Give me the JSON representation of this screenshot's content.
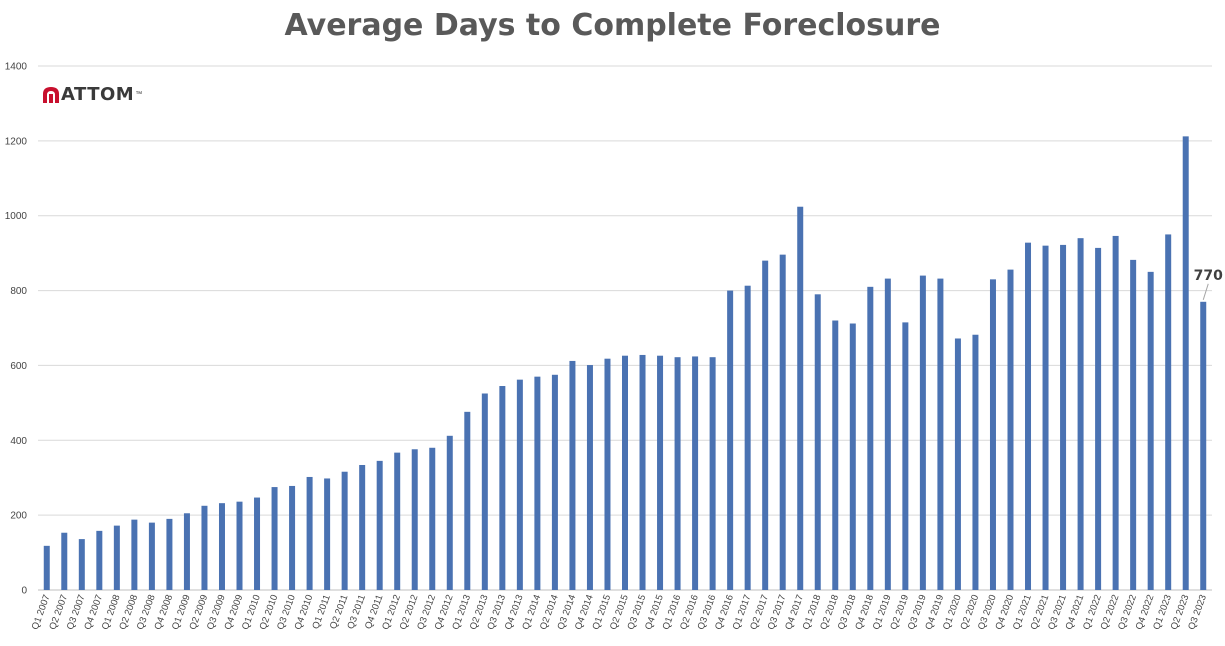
{
  "chart_data": {
    "type": "bar",
    "title": "Average Days to Complete Foreclosure",
    "xlabel": "",
    "ylabel": "",
    "ylim": [
      0,
      1400
    ],
    "yticks": [
      0,
      200,
      400,
      600,
      800,
      1000,
      1200,
      1400
    ],
    "grid": true,
    "bar_color": "#4a72b2",
    "categories": [
      "Q1 2007",
      "Q2 2007",
      "Q3 2007",
      "Q4 2007",
      "Q1 2008",
      "Q2 2008",
      "Q3 2008",
      "Q4 2008",
      "Q1 2009",
      "Q2 2009",
      "Q3 2009",
      "Q4 2009",
      "Q1 2010",
      "Q2 2010",
      "Q3 2010",
      "Q4 2010",
      "Q1 2011",
      "Q2 2011",
      "Q3 2011",
      "Q4 2011",
      "Q1 2012",
      "Q2 2012",
      "Q3 2012",
      "Q4 2012",
      "Q1 2013",
      "Q2 2013",
      "Q3 2013",
      "Q4 2013",
      "Q1 2014",
      "Q2 2014",
      "Q3 2014",
      "Q4 2014",
      "Q1 2015",
      "Q2 2015",
      "Q3 2015",
      "Q4 2015",
      "Q1 2016",
      "Q2 2016",
      "Q3 2016",
      "Q4 2016",
      "Q1 2017",
      "Q2 2017",
      "Q3 2017",
      "Q4 2017",
      "Q1 2018",
      "Q2 2018",
      "Q3 2018",
      "Q4 2018",
      "Q1 2019",
      "Q2 2019",
      "Q3 2019",
      "Q4 2019",
      "Q1 2020",
      "Q2 2020",
      "Q3 2020",
      "Q4 2020",
      "Q1 2021",
      "Q2 2021",
      "Q3 2021",
      "Q4 2021",
      "Q1 2022",
      "Q2 2022",
      "Q3 2022",
      "Q4 2022",
      "Q1 2023",
      "Q2 2023",
      "Q3 2023"
    ],
    "values": [
      118,
      153,
      136,
      158,
      172,
      188,
      180,
      190,
      205,
      225,
      232,
      236,
      247,
      275,
      278,
      302,
      298,
      316,
      334,
      345,
      367,
      376,
      380,
      412,
      476,
      525,
      545,
      562,
      570,
      575,
      612,
      601,
      618,
      626,
      628,
      626,
      622,
      624,
      622,
      800,
      813,
      880,
      896,
      1024,
      790,
      720,
      712,
      810,
      832,
      715,
      840,
      832,
      672,
      682,
      830,
      856,
      928,
      920,
      922,
      940,
      914,
      946,
      882,
      850,
      950,
      1212,
      770
    ],
    "annotations": [
      {
        "category": "Q3 2023",
        "label": "770"
      }
    ]
  },
  "logo": {
    "text": "ATTOM",
    "tm": "™",
    "color": "#c8102e"
  }
}
